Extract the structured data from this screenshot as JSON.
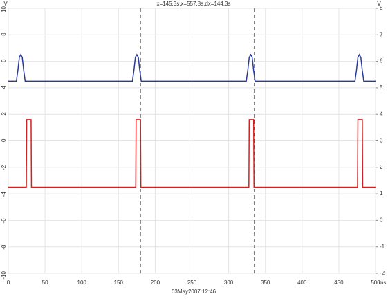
{
  "chart_data": {
    "type": "line",
    "title": "x=145.3s,x=557.8s,dx=144.3s",
    "x_unit": "ms",
    "left_axis_label": "V",
    "right_axis_label": "V",
    "footer": "03May2007 12:46",
    "xlim": [
      0,
      500
    ],
    "xticks": [
      0,
      50,
      100,
      150,
      200,
      250,
      300,
      350,
      400,
      450,
      500
    ],
    "ylim": [
      -10,
      10
    ],
    "yticks": [
      -10,
      -8,
      -6,
      -4,
      -2,
      0,
      2,
      4,
      6,
      8,
      10
    ],
    "y2lim": [
      -2,
      8
    ],
    "y2ticks": [
      -2,
      -1,
      0,
      1,
      2,
      3,
      4,
      5,
      6,
      7,
      8
    ],
    "grid": true,
    "cursors": [
      180,
      335
    ],
    "series": [
      {
        "color": "#2a3a9a",
        "x": [
          0,
          11,
          13,
          15,
          17,
          19,
          21,
          23,
          169,
          171,
          173,
          175,
          177,
          179,
          181,
          324,
          326,
          328,
          330,
          332,
          334,
          336,
          472,
          474,
          476,
          478,
          480,
          482,
          484,
          500
        ],
        "values": [
          4.5,
          4.5,
          5.3,
          6.3,
          6.5,
          6.3,
          5.3,
          4.5,
          4.5,
          5.3,
          6.3,
          6.5,
          6.3,
          5.3,
          4.5,
          4.5,
          5.3,
          6.3,
          6.5,
          6.3,
          5.3,
          4.5,
          4.5,
          5.3,
          6.3,
          6.5,
          6.3,
          5.3,
          4.5,
          4.5
        ]
      },
      {
        "color": "#d42020",
        "x": [
          0,
          24.5,
          25,
          31,
          31.5,
          173.5,
          174,
          180,
          180.5,
          327.5,
          328,
          334,
          334.5,
          475.5,
          476,
          482,
          482.5,
          500
        ],
        "values": [
          -3.5,
          -3.5,
          1.6,
          1.6,
          -3.5,
          -3.5,
          1.6,
          1.6,
          -3.5,
          -3.5,
          1.6,
          1.6,
          -3.5,
          -3.5,
          1.6,
          1.6,
          -3.5,
          -3.5
        ]
      }
    ]
  }
}
